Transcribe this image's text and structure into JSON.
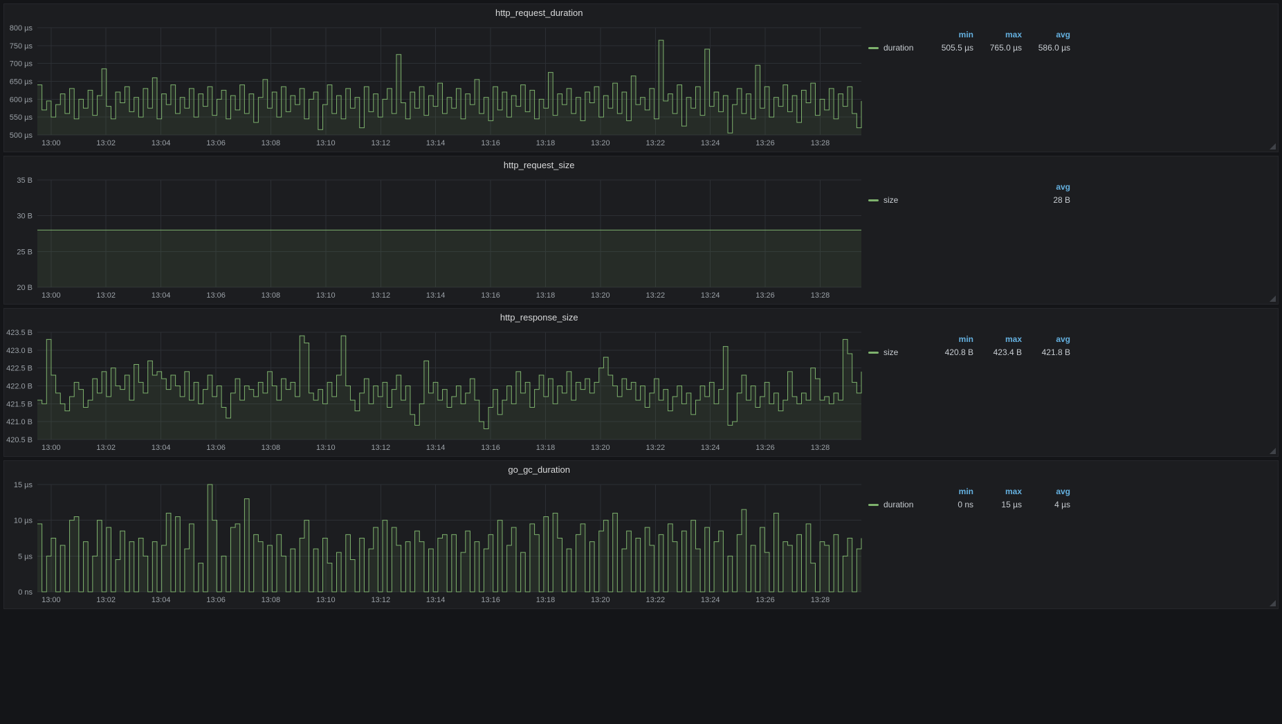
{
  "theme": {
    "page_bg": "#141518",
    "panel_bg": "#1c1d20",
    "panel_border": "#26272b",
    "grid": "#2c2f34",
    "text": "#d8d9da",
    "text_dim": "#9aa0a6",
    "line_color": "#7eb26d",
    "fill_color": "rgba(126,178,109,0.10)",
    "stat_header_color": "#64b0df"
  },
  "chart_data": [
    {
      "type": "line",
      "render": "step-after",
      "fill": true,
      "legend_position": "right",
      "title": "http_request_duration",
      "series_name": "duration",
      "unit": "µs",
      "y_min": 500,
      "y_max": 800,
      "y_ticks": [
        {
          "v": 800,
          "label": "800 µs"
        },
        {
          "v": 750,
          "label": "750 µs"
        },
        {
          "v": 700,
          "label": "700 µs"
        },
        {
          "v": 650,
          "label": "650 µs"
        },
        {
          "v": 600,
          "label": "600 µs"
        },
        {
          "v": 550,
          "label": "550 µs"
        },
        {
          "v": 500,
          "label": "500 µs"
        }
      ],
      "x_start": "12:59:30",
      "x_end": "13:29:30",
      "x_ticks": [
        {
          "label": "13:00",
          "f": 0.0167
        },
        {
          "label": "13:02",
          "f": 0.0833
        },
        {
          "label": "13:04",
          "f": 0.15
        },
        {
          "label": "13:06",
          "f": 0.2167
        },
        {
          "label": "13:08",
          "f": 0.2833
        },
        {
          "label": "13:10",
          "f": 0.35
        },
        {
          "label": "13:12",
          "f": 0.4167
        },
        {
          "label": "13:14",
          "f": 0.4833
        },
        {
          "label": "13:16",
          "f": 0.55
        },
        {
          "label": "13:18",
          "f": 0.6167
        },
        {
          "label": "13:20",
          "f": 0.6833
        },
        {
          "label": "13:22",
          "f": 0.75
        },
        {
          "label": "13:24",
          "f": 0.8167
        },
        {
          "label": "13:26",
          "f": 0.8833
        },
        {
          "label": "13:28",
          "f": 0.95
        }
      ],
      "legend": {
        "stats": [
          {
            "name": "min",
            "value": "505.5 µs"
          },
          {
            "name": "max",
            "value": "765.0 µs"
          },
          {
            "name": "avg",
            "value": "586.0 µs"
          }
        ]
      },
      "values": [
        640,
        570,
        595,
        550,
        585,
        615,
        560,
        630,
        545,
        600,
        575,
        625,
        555,
        610,
        685,
        580,
        545,
        620,
        590,
        635,
        565,
        605,
        550,
        630,
        575,
        660,
        545,
        615,
        585,
        640,
        560,
        605,
        575,
        630,
        550,
        615,
        580,
        635,
        555,
        600,
        625,
        545,
        610,
        570,
        640,
        560,
        615,
        535,
        605,
        655,
        575,
        620,
        550,
        635,
        565,
        610,
        585,
        630,
        545,
        600,
        620,
        515,
        585,
        640,
        560,
        610,
        545,
        630,
        575,
        605,
        520,
        635,
        565,
        615,
        550,
        600,
        630,
        560,
        725,
        590,
        545,
        620,
        575,
        635,
        555,
        610,
        580,
        645,
        560,
        605,
        575,
        630,
        545,
        615,
        585,
        655,
        560,
        605,
        540,
        635,
        570,
        620,
        550,
        610,
        580,
        640,
        565,
        625,
        545,
        600,
        575,
        675,
        555,
        615,
        585,
        630,
        560,
        605,
        540,
        620,
        590,
        635,
        550,
        610,
        575,
        645,
        560,
        620,
        540,
        665,
        585,
        605,
        570,
        630,
        545,
        765,
        595,
        615,
        560,
        640,
        525,
        605,
        575,
        635,
        555,
        740,
        580,
        620,
        565,
        610,
        505.5,
        585,
        630,
        560,
        615,
        545,
        695,
        575,
        635,
        550,
        605,
        580,
        640,
        565,
        610,
        535,
        625,
        590,
        645,
        555,
        600,
        570,
        630,
        545,
        615,
        580,
        635,
        560,
        520,
        595
      ]
    },
    {
      "type": "line",
      "render": "step-after",
      "fill": true,
      "legend_position": "right",
      "title": "http_request_size",
      "series_name": "size",
      "unit": "B",
      "y_min": 20,
      "y_max": 35,
      "y_ticks": [
        {
          "v": 35,
          "label": "35 B"
        },
        {
          "v": 30,
          "label": "30 B"
        },
        {
          "v": 25,
          "label": "25 B"
        },
        {
          "v": 20,
          "label": "20 B"
        }
      ],
      "x_start": "12:59:30",
      "x_end": "13:29:30",
      "x_ticks": [
        {
          "label": "13:00",
          "f": 0.0167
        },
        {
          "label": "13:02",
          "f": 0.0833
        },
        {
          "label": "13:04",
          "f": 0.15
        },
        {
          "label": "13:06",
          "f": 0.2167
        },
        {
          "label": "13:08",
          "f": 0.2833
        },
        {
          "label": "13:10",
          "f": 0.35
        },
        {
          "label": "13:12",
          "f": 0.4167
        },
        {
          "label": "13:14",
          "f": 0.4833
        },
        {
          "label": "13:16",
          "f": 0.55
        },
        {
          "label": "13:18",
          "f": 0.6167
        },
        {
          "label": "13:20",
          "f": 0.6833
        },
        {
          "label": "13:22",
          "f": 0.75
        },
        {
          "label": "13:24",
          "f": 0.8167
        },
        {
          "label": "13:26",
          "f": 0.8833
        },
        {
          "label": "13:28",
          "f": 0.95
        }
      ],
      "legend": {
        "stats": [
          {
            "name": "avg",
            "value": "28 B"
          }
        ]
      },
      "values": [
        28,
        28,
        28,
        28,
        28,
        28,
        28,
        28,
        28,
        28
      ]
    },
    {
      "type": "line",
      "render": "step-after",
      "fill": true,
      "legend_position": "right",
      "title": "http_response_size",
      "series_name": "size",
      "unit": "B",
      "y_min": 420.5,
      "y_max": 423.5,
      "y_ticks": [
        {
          "v": 423.5,
          "label": "423.5 B"
        },
        {
          "v": 423.0,
          "label": "423.0 B"
        },
        {
          "v": 422.5,
          "label": "422.5 B"
        },
        {
          "v": 422.0,
          "label": "422.0 B"
        },
        {
          "v": 421.5,
          "label": "421.5 B"
        },
        {
          "v": 421.0,
          "label": "421.0 B"
        },
        {
          "v": 420.5,
          "label": "420.5 B"
        }
      ],
      "x_start": "12:59:30",
      "x_end": "13:29:30",
      "x_ticks": [
        {
          "label": "13:00",
          "f": 0.0167
        },
        {
          "label": "13:02",
          "f": 0.0833
        },
        {
          "label": "13:04",
          "f": 0.15
        },
        {
          "label": "13:06",
          "f": 0.2167
        },
        {
          "label": "13:08",
          "f": 0.2833
        },
        {
          "label": "13:10",
          "f": 0.35
        },
        {
          "label": "13:12",
          "f": 0.4167
        },
        {
          "label": "13:14",
          "f": 0.4833
        },
        {
          "label": "13:16",
          "f": 0.55
        },
        {
          "label": "13:18",
          "f": 0.6167
        },
        {
          "label": "13:20",
          "f": 0.6833
        },
        {
          "label": "13:22",
          "f": 0.75
        },
        {
          "label": "13:24",
          "f": 0.8167
        },
        {
          "label": "13:26",
          "f": 0.8833
        },
        {
          "label": "13:28",
          "f": 0.95
        }
      ],
      "legend": {
        "stats": [
          {
            "name": "min",
            "value": "420.8 B"
          },
          {
            "name": "max",
            "value": "423.4 B"
          },
          {
            "name": "avg",
            "value": "421.8 B"
          }
        ]
      },
      "values": [
        421.6,
        421.5,
        423.3,
        422.3,
        421.8,
        421.5,
        421.3,
        421.7,
        422.1,
        421.9,
        421.4,
        421.6,
        422.2,
        421.8,
        422.4,
        421.7,
        422.5,
        422.0,
        421.9,
        422.3,
        421.6,
        422.6,
        422.1,
        421.8,
        422.7,
        422.3,
        422.4,
        422.2,
        421.9,
        422.3,
        422.0,
        421.7,
        422.4,
        421.6,
        422.1,
        421.5,
        421.9,
        422.3,
        421.7,
        422.0,
        421.4,
        421.1,
        421.8,
        422.2,
        421.6,
        422.0,
        421.9,
        421.7,
        422.1,
        421.8,
        422.4,
        422.0,
        421.6,
        422.2,
        421.9,
        422.1,
        421.7,
        423.4,
        423.2,
        421.8,
        421.6,
        421.9,
        421.5,
        422.1,
        421.7,
        422.3,
        423.4,
        422.0,
        421.6,
        421.3,
        421.8,
        422.2,
        421.5,
        422.0,
        421.7,
        422.1,
        421.4,
        421.9,
        422.3,
        421.6,
        422.0,
        421.2,
        420.9,
        421.5,
        422.7,
        421.8,
        422.1,
        421.6,
        421.9,
        421.4,
        421.7,
        422.0,
        421.5,
        421.8,
        422.2,
        421.6,
        421.0,
        420.8,
        421.4,
        421.9,
        421.2,
        421.6,
        422.0,
        421.5,
        422.4,
        421.8,
        422.1,
        421.4,
        421.9,
        422.3,
        421.7,
        422.2,
        421.5,
        422.0,
        421.8,
        422.4,
        421.6,
        422.1,
        421.9,
        422.2,
        421.8,
        422.1,
        422.5,
        422.8,
        422.3,
        422.0,
        421.7,
        422.2,
        421.9,
        422.1,
        421.6,
        422.0,
        421.4,
        421.8,
        422.2,
        421.6,
        421.9,
        421.3,
        421.7,
        422.0,
        421.5,
        421.8,
        421.2,
        421.6,
        422.0,
        421.7,
        422.1,
        421.5,
        421.9,
        423.1,
        420.9,
        421.0,
        421.8,
        422.3,
        421.6,
        422.0,
        421.4,
        421.7,
        422.1,
        421.5,
        421.8,
        421.3,
        421.6,
        422.4,
        421.7,
        421.5,
        421.8,
        421.6,
        422.5,
        422.2,
        421.6,
        421.7,
        421.5,
        421.8,
        421.6,
        423.3,
        422.9,
        422.1,
        421.8,
        422.4
      ]
    },
    {
      "type": "line",
      "render": "step-after",
      "fill": true,
      "legend_position": "right",
      "title": "go_gc_duration",
      "series_name": "duration",
      "unit": "µs",
      "y_min": 0,
      "y_max": 15,
      "y_ticks": [
        {
          "v": 15,
          "label": "15 µs"
        },
        {
          "v": 10,
          "label": "10 µs"
        },
        {
          "v": 5,
          "label": "5 µs"
        },
        {
          "v": 0,
          "label": "0 ns"
        }
      ],
      "x_start": "12:59:30",
      "x_end": "13:29:30",
      "x_ticks": [
        {
          "label": "13:00",
          "f": 0.0167
        },
        {
          "label": "13:02",
          "f": 0.0833
        },
        {
          "label": "13:04",
          "f": 0.15
        },
        {
          "label": "13:06",
          "f": 0.2167
        },
        {
          "label": "13:08",
          "f": 0.2833
        },
        {
          "label": "13:10",
          "f": 0.35
        },
        {
          "label": "13:12",
          "f": 0.4167
        },
        {
          "label": "13:14",
          "f": 0.4833
        },
        {
          "label": "13:16",
          "f": 0.55
        },
        {
          "label": "13:18",
          "f": 0.6167
        },
        {
          "label": "13:20",
          "f": 0.6833
        },
        {
          "label": "13:22",
          "f": 0.75
        },
        {
          "label": "13:24",
          "f": 0.8167
        },
        {
          "label": "13:26",
          "f": 0.8833
        },
        {
          "label": "13:28",
          "f": 0.95
        }
      ],
      "legend": {
        "stats": [
          {
            "name": "min",
            "value": "0 ns"
          },
          {
            "name": "max",
            "value": "15 µs"
          },
          {
            "name": "avg",
            "value": "4 µs"
          }
        ]
      },
      "values": [
        9.5,
        0,
        5,
        7.5,
        0,
        6.5,
        0,
        10,
        10.5,
        0,
        7,
        0,
        5,
        10,
        0,
        9,
        0,
        4.5,
        8.5,
        0,
        7,
        0,
        7.5,
        5,
        0,
        7,
        0,
        6.5,
        11,
        0,
        10.5,
        0,
        6,
        9.5,
        0,
        4,
        0,
        15,
        10,
        0,
        5,
        0,
        9,
        9.5,
        0,
        13,
        0,
        8,
        7,
        0,
        6.5,
        0,
        8,
        5,
        0,
        6,
        0,
        7.5,
        10,
        0,
        6,
        0,
        7.5,
        4,
        0,
        5.5,
        0,
        8,
        4.5,
        0,
        7.5,
        0,
        6,
        9,
        0,
        10,
        0,
        9,
        6.5,
        0,
        7,
        0,
        8.5,
        7,
        0,
        6,
        0,
        7.5,
        8,
        0,
        8,
        0,
        5.5,
        8.5,
        0,
        7,
        0,
        6,
        8,
        0,
        10,
        0,
        6.5,
        9,
        0,
        5.5,
        0,
        9.5,
        8,
        0,
        10.5,
        0,
        11,
        7.5,
        0,
        6,
        0,
        8,
        9.5,
        0,
        7,
        0,
        8.5,
        10,
        0,
        11,
        0,
        6,
        8.5,
        0,
        7.5,
        0,
        9,
        6.5,
        0,
        8,
        0,
        9.5,
        7,
        0,
        8.5,
        0,
        10,
        6,
        0,
        9,
        0,
        7,
        8.5,
        0,
        5,
        0,
        8,
        11.5,
        0,
        6.5,
        0,
        9,
        5.5,
        0,
        11,
        0,
        7,
        6.5,
        0,
        8,
        0,
        9.5,
        4,
        0,
        7,
        6.5,
        0,
        8,
        0,
        5,
        7.5,
        0,
        6,
        7.5
      ]
    }
  ]
}
